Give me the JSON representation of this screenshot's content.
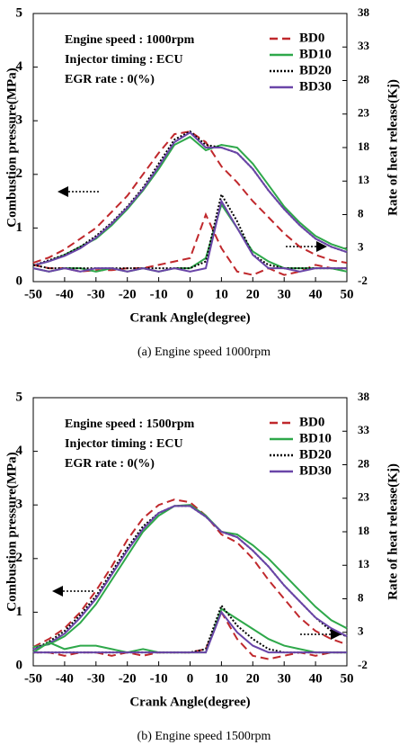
{
  "chart_data": [
    {
      "type": "line",
      "annotations": [
        "Engine speed : 1000rpm",
        "Injector timing : ECU",
        "EGR rate : 0(%)"
      ],
      "xlabel": "Crank Angle(degree)",
      "ylabel": "Combustion pressure(MPa)",
      "y2label": "Rate of heat release(Kj)",
      "caption": "(a)  Engine  speed  1000rpm",
      "x": [
        -50,
        -45,
        -40,
        -35,
        -30,
        -25,
        -20,
        -15,
        -10,
        -5,
        0,
        5,
        10,
        15,
        20,
        25,
        30,
        35,
        40,
        45,
        50
      ],
      "xlim": [
        -50,
        50
      ],
      "xticks": [
        -50,
        -40,
        -30,
        -20,
        -10,
        0,
        10,
        20,
        30,
        40,
        50
      ],
      "ylim": [
        0,
        5
      ],
      "yticks": [
        0,
        1,
        2,
        3,
        4,
        5
      ],
      "y2lim": [
        -2,
        38
      ],
      "y2ticks": [
        -2,
        3,
        8,
        13,
        18,
        23,
        28,
        33,
        38
      ],
      "series": [
        {
          "name": "BD0",
          "color": "#c0282c",
          "style": "dashed",
          "values": [
            0.35,
            0.45,
            0.6,
            0.8,
            1.0,
            1.3,
            1.6,
            2.0,
            2.4,
            2.75,
            2.8,
            2.6,
            2.15,
            1.85,
            1.5,
            1.2,
            0.9,
            0.65,
            0.5,
            0.4,
            0.35
          ]
        },
        {
          "name": "BD10",
          "color": "#2ea84a",
          "style": "solid",
          "values": [
            0.3,
            0.38,
            0.5,
            0.65,
            0.8,
            1.05,
            1.35,
            1.7,
            2.1,
            2.55,
            2.7,
            2.45,
            2.55,
            2.5,
            2.2,
            1.8,
            1.4,
            1.1,
            0.85,
            0.7,
            0.6
          ]
        },
        {
          "name": "BD20",
          "color": "#000000",
          "style": "dotted",
          "values": [
            0.3,
            0.4,
            0.5,
            0.65,
            0.85,
            1.1,
            1.4,
            1.75,
            2.2,
            2.65,
            2.8,
            2.55,
            2.5,
            2.4,
            2.1,
            1.7,
            1.35,
            1.05,
            0.8,
            0.65,
            0.55
          ]
        },
        {
          "name": "BD30",
          "color": "#6a45a8",
          "style": "solid",
          "values": [
            0.3,
            0.38,
            0.48,
            0.62,
            0.82,
            1.08,
            1.38,
            1.72,
            2.15,
            2.6,
            2.78,
            2.5,
            2.5,
            2.4,
            2.1,
            1.7,
            1.35,
            1.05,
            0.8,
            0.65,
            0.55
          ]
        },
        {
          "color": "#c0282c",
          "style": "dashed",
          "axis": "y2",
          "values": [
            0.5,
            0,
            0,
            -0.5,
            -0.3,
            -0.3,
            0,
            0,
            0.5,
            1,
            1.5,
            8,
            3,
            -0.5,
            -1,
            0,
            -1,
            -0.5,
            0.5,
            0,
            0
          ]
        },
        {
          "color": "#2ea84a",
          "style": "solid",
          "axis": "y2",
          "values": [
            0,
            -0.5,
            0,
            0,
            -0.5,
            0,
            -0.5,
            0,
            -0.5,
            0,
            0,
            1.5,
            9.5,
            6,
            2.5,
            1,
            0,
            0,
            0,
            0,
            -0.5
          ]
        },
        {
          "color": "#000000",
          "style": "dotted",
          "axis": "y2",
          "values": [
            0.5,
            0,
            0,
            0,
            0,
            0,
            0,
            0,
            0,
            0,
            0,
            1,
            11,
            7,
            2,
            0.5,
            0,
            0,
            0,
            0,
            0
          ]
        },
        {
          "color": "#6a45a8",
          "style": "solid",
          "axis": "y2",
          "values": [
            0,
            -0.5,
            0,
            -0.5,
            0,
            0,
            -0.5,
            0,
            -0.5,
            0,
            -0.5,
            0,
            10,
            6,
            2,
            0,
            0,
            -0.5,
            0,
            0,
            0
          ]
        }
      ]
    },
    {
      "type": "line",
      "annotations": [
        "Engine speed : 1500rpm",
        "Injector timing : ECU",
        "EGR rate : 0(%)"
      ],
      "xlabel": "Crank Angle(degree)",
      "ylabel": "Combustion pressure(MPa)",
      "y2label": "Rate of heat release(Kj)",
      "caption": "(b)  Engine  speed  1500rpm",
      "x": [
        -50,
        -45,
        -40,
        -35,
        -30,
        -25,
        -20,
        -15,
        -10,
        -5,
        0,
        5,
        10,
        15,
        20,
        25,
        30,
        35,
        40,
        45,
        50
      ],
      "xlim": [
        -50,
        50
      ],
      "xticks": [
        -50,
        -40,
        -30,
        -20,
        -10,
        0,
        10,
        20,
        30,
        40,
        50
      ],
      "ylim": [
        0,
        5
      ],
      "yticks": [
        0,
        1,
        2,
        3,
        4,
        5
      ],
      "y2lim": [
        -2,
        38
      ],
      "y2ticks": [
        -2,
        3,
        8,
        13,
        18,
        23,
        28,
        33,
        38
      ],
      "series": [
        {
          "name": "BD0",
          "color": "#c0282c",
          "style": "dashed",
          "values": [
            0.35,
            0.5,
            0.7,
            1.0,
            1.4,
            1.85,
            2.35,
            2.75,
            3.0,
            3.1,
            3.05,
            2.8,
            2.45,
            2.3,
            2.0,
            1.6,
            1.25,
            0.9,
            0.65,
            0.5,
            0.4
          ]
        },
        {
          "name": "BD10",
          "color": "#2ea84a",
          "style": "solid",
          "values": [
            0.35,
            0.4,
            0.55,
            0.8,
            1.15,
            1.6,
            2.05,
            2.5,
            2.8,
            2.98,
            3.0,
            2.8,
            2.5,
            2.45,
            2.25,
            2.0,
            1.7,
            1.4,
            1.1,
            0.85,
            0.7
          ]
        },
        {
          "name": "BD20",
          "color": "#000000",
          "style": "dotted",
          "values": [
            0.3,
            0.45,
            0.65,
            0.95,
            1.3,
            1.75,
            2.2,
            2.6,
            2.85,
            2.98,
            2.98,
            2.78,
            2.5,
            2.4,
            2.15,
            1.85,
            1.5,
            1.2,
            0.9,
            0.65,
            0.55
          ]
        },
        {
          "name": "BD30",
          "color": "#6a45a8",
          "style": "solid",
          "values": [
            0.3,
            0.42,
            0.6,
            0.9,
            1.25,
            1.7,
            2.15,
            2.55,
            2.85,
            2.98,
            2.98,
            2.78,
            2.5,
            2.4,
            2.15,
            1.85,
            1.5,
            1.2,
            0.9,
            0.7,
            0.55
          ]
        },
        {
          "color": "#c0282c",
          "style": "dashed",
          "axis": "y2",
          "values": [
            0,
            0,
            -0.5,
            0,
            0,
            -0.5,
            0,
            -0.5,
            0,
            0,
            0,
            0.5,
            6,
            2,
            -0.5,
            -1,
            -0.5,
            0,
            -0.5,
            0,
            0
          ]
        },
        {
          "color": "#2ea84a",
          "style": "solid",
          "axis": "y2",
          "values": [
            0,
            1.5,
            0.5,
            1,
            1,
            0.5,
            0,
            0.5,
            0,
            0,
            0,
            0,
            6.5,
            5,
            3.5,
            2,
            1,
            0.5,
            0,
            0,
            0
          ]
        },
        {
          "color": "#000000",
          "style": "dotted",
          "axis": "y2",
          "values": [
            0,
            0,
            0,
            0,
            0,
            0,
            0,
            0,
            0,
            0,
            0,
            0.5,
            7,
            4,
            2,
            0.5,
            0,
            0,
            0,
            0,
            0
          ]
        },
        {
          "color": "#6a45a8",
          "style": "solid",
          "axis": "y2",
          "values": [
            0,
            0,
            0,
            0,
            0,
            0,
            0,
            0,
            0,
            0,
            0,
            0,
            6,
            3,
            1,
            0,
            0,
            0,
            0,
            0,
            0
          ]
        }
      ]
    }
  ]
}
